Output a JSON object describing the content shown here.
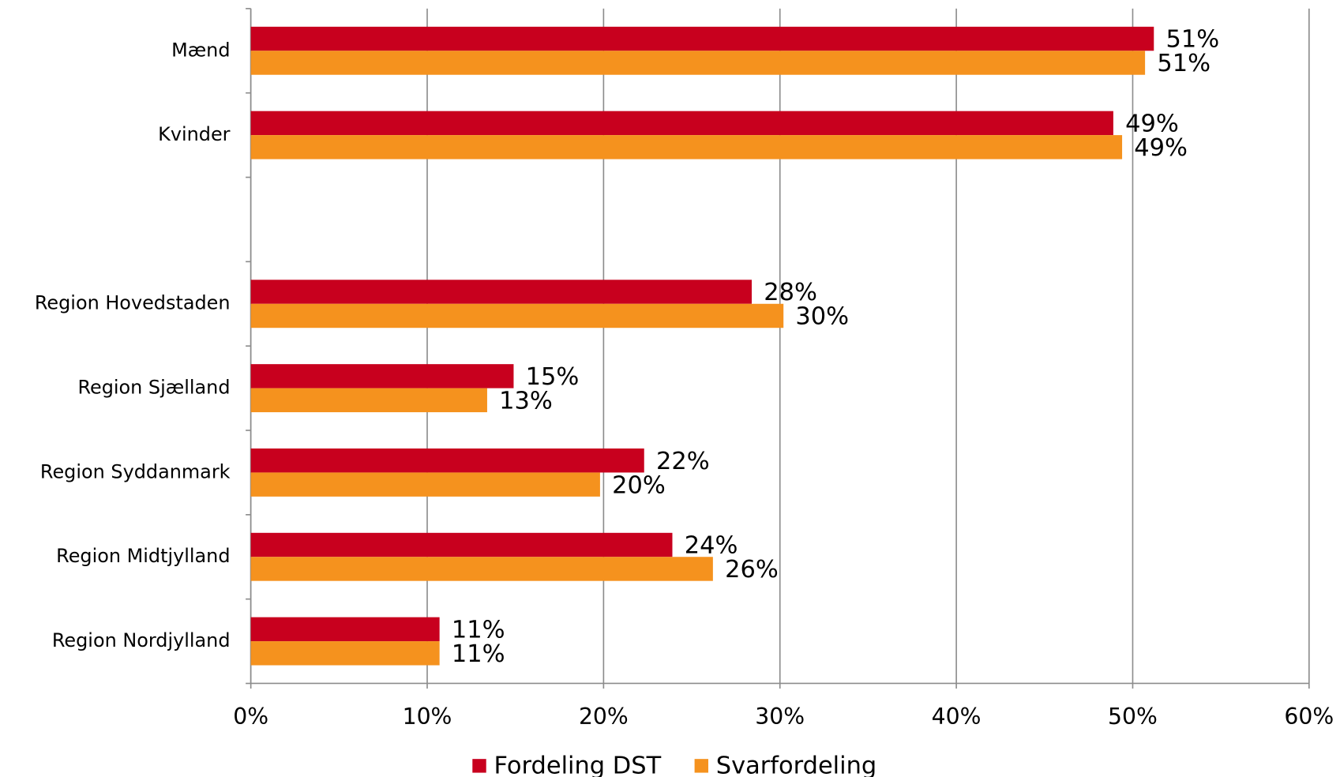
{
  "chart_data": {
    "type": "hbar",
    "categories": [
      "Mænd",
      "Kvinder",
      null,
      "Region Hovedstaden",
      "Region Sjælland",
      "Region Syddanmark",
      "Region Midtjylland",
      "Region Nordjylland"
    ],
    "series": [
      {
        "name": "Fordeling DST",
        "color": "#c8001e",
        "values": [
          51.2,
          48.9,
          null,
          28.4,
          14.9,
          22.3,
          23.9,
          10.7
        ],
        "value_labels": [
          "51%",
          "49%",
          null,
          "28%",
          "15%",
          "22%",
          "24%",
          "11%"
        ]
      },
      {
        "name": "Svarfordeling",
        "color": "#f5921e",
        "values": [
          50.7,
          49.4,
          null,
          30.2,
          13.4,
          19.8,
          26.2,
          10.7
        ],
        "value_labels": [
          "51%",
          "49%",
          null,
          "30%",
          "13%",
          "20%",
          "26%",
          "11%"
        ]
      }
    ],
    "xlim": [
      0,
      60
    ],
    "xticks": [
      {
        "value": 0,
        "label": "0%"
      },
      {
        "value": 10,
        "label": "10%"
      },
      {
        "value": 20,
        "label": "20%"
      },
      {
        "value": 30,
        "label": "30%"
      },
      {
        "value": 40,
        "label": "40%"
      },
      {
        "value": 50,
        "label": "50%"
      },
      {
        "value": 60,
        "label": "60%"
      }
    ],
    "grid": true,
    "legend": "bottom"
  }
}
